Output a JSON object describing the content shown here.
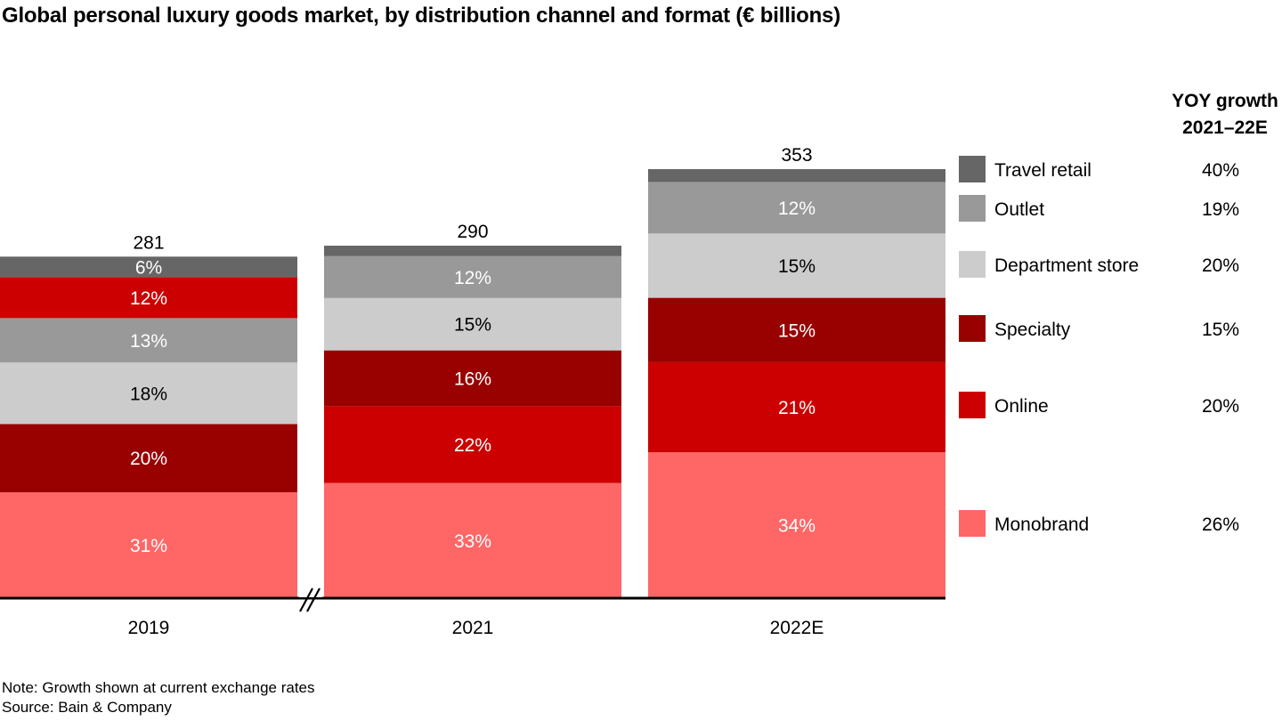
{
  "title": "Global personal luxury goods market, by distribution channel and format (€ billions)",
  "footnotes": {
    "note": "Note: Growth shown at current exchange rates",
    "source": "Source: Bain & Company"
  },
  "chart_data": {
    "type": "bar",
    "stacked": true,
    "title": "Global personal luxury goods market, by distribution channel and format (€ billions)",
    "xlabel": "",
    "ylabel": "",
    "unit": "€ billions",
    "categories": [
      "2019",
      "2021",
      "2022E"
    ],
    "totals": [
      281,
      290,
      353
    ],
    "axis_break_between": [
      "2019",
      "2021"
    ],
    "colors": {
      "Travel retail": "#666666",
      "Outlet": "#999999",
      "Department store": "#cccccc",
      "Specialty": "#990000",
      "Online": "#cc0000",
      "Monobrand": "#ff6666"
    },
    "stack_order_bottom_to_top": [
      [
        "Monobrand",
        "Specialty",
        "Department store",
        "Outlet",
        "Online",
        "Travel retail"
      ],
      [
        "Monobrand",
        "Online",
        "Specialty",
        "Department store",
        "Outlet",
        "Travel retail"
      ],
      [
        "Monobrand",
        "Online",
        "Specialty",
        "Department store",
        "Outlet",
        "Travel retail"
      ]
    ],
    "series": [
      {
        "name": "Monobrand",
        "share_pct": [
          31,
          33,
          34
        ],
        "labels": [
          "31%",
          "33%",
          "34%"
        ],
        "yoy_growth_2021_22E": "26%"
      },
      {
        "name": "Online",
        "share_pct": [
          12,
          22,
          21
        ],
        "labels": [
          "12%",
          "22%",
          "21%"
        ],
        "yoy_growth_2021_22E": "20%"
      },
      {
        "name": "Specialty",
        "share_pct": [
          20,
          16,
          15
        ],
        "labels": [
          "20%",
          "16%",
          "15%"
        ],
        "yoy_growth_2021_22E": "15%"
      },
      {
        "name": "Department store",
        "share_pct": [
          18,
          15,
          15
        ],
        "labels": [
          "18%",
          "15%",
          "15%"
        ],
        "yoy_growth_2021_22E": "20%"
      },
      {
        "name": "Outlet",
        "share_pct": [
          13,
          12,
          12
        ],
        "labels": [
          "13%",
          "12%",
          "12%"
        ],
        "yoy_growth_2021_22E": "19%"
      },
      {
        "name": "Travel retail",
        "share_pct": [
          6,
          3,
          3
        ],
        "labels": [
          "6%",
          "",
          ""
        ],
        "yoy_growth_2021_22E": "40%"
      }
    ],
    "legend": {
      "placement": "right",
      "header": [
        "YOY growth",
        "2021–22E"
      ],
      "items": [
        {
          "name": "Travel retail",
          "growth": "40%"
        },
        {
          "name": "Outlet",
          "growth": "19%"
        },
        {
          "name": "Department store",
          "growth": "20%"
        },
        {
          "name": "Specialty",
          "growth": "15%"
        },
        {
          "name": "Online",
          "growth": "20%"
        },
        {
          "name": "Monobrand",
          "growth": "26%"
        }
      ]
    },
    "label_colors": {
      "Travel retail": "#ffffff",
      "Outlet": "#ffffff",
      "Department store": "#000000",
      "Specialty": "#ffffff",
      "Online": "#ffffff",
      "Monobrand": "#ffffff"
    },
    "grid": false
  }
}
